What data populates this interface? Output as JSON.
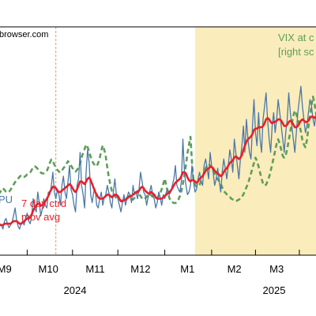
{
  "colors": {
    "epu": "#4a78a8",
    "epu_ma": "#e8202a",
    "vix": "#5e9e5a",
    "shade": "#fbecbc",
    "event_line": "#e0a060"
  },
  "source_text": "browser.com",
  "chart_data": {
    "type": "line",
    "x_tick_labels": [
      "M9",
      "M10",
      "M11",
      "M12",
      "M1",
      "M2",
      "M3"
    ],
    "year_labels": [
      "2024",
      "2025"
    ],
    "x_range_days": [
      0,
      210
    ],
    "event_day": 38,
    "shaded_from_day": 130,
    "annotations": [
      {
        "id": "vix",
        "lines": [
          "VIX at c",
          "[right sc"
        ]
      },
      {
        "id": "epu",
        "lines": [
          "PU"
        ]
      },
      {
        "id": "ma",
        "lines": [
          "7 day ctrd",
          "mov avg"
        ]
      }
    ],
    "series": [
      {
        "id": "epu",
        "style": "solid-thin",
        "values": [
          14,
          16,
          15,
          12,
          18,
          20,
          16,
          13,
          15,
          17,
          22,
          28,
          19,
          14,
          12,
          16,
          18,
          15,
          20,
          24,
          18,
          16,
          22,
          35,
          28,
          25,
          40,
          32,
          22,
          27,
          35,
          30,
          28,
          40,
          38,
          45,
          55,
          40,
          35,
          42,
          38,
          30,
          45,
          52,
          40,
          35,
          48,
          60,
          42,
          38,
          30,
          25,
          45,
          50,
          70,
          45,
          38,
          28,
          55,
          72,
          62,
          38,
          32,
          40,
          42,
          30,
          28,
          35,
          40,
          30,
          36,
          38,
          45,
          40,
          32,
          28,
          40,
          50,
          38,
          35,
          30,
          25,
          32,
          38,
          30,
          35,
          40,
          38,
          32,
          45,
          38,
          40,
          35,
          42,
          55,
          48,
          40,
          38,
          30,
          36,
          40,
          45,
          38,
          35,
          28,
          32,
          40,
          36,
          30,
          38,
          35,
          40,
          42,
          38,
          40,
          45,
          50,
          60,
          45,
          42,
          40,
          48,
          80,
          55,
          45,
          38,
          40,
          45,
          60,
          48,
          40,
          42,
          50,
          55,
          48,
          45,
          60,
          65,
          58,
          50,
          70,
          60,
          55,
          45,
          50,
          58,
          48,
          40,
          55,
          65,
          58,
          50,
          60,
          72,
          65,
          55,
          80,
          70,
          60,
          50,
          65,
          75,
          90,
          70,
          95,
          80,
          70,
          65,
          90,
          110,
          85,
          75,
          100,
          80,
          70,
          95,
          105,
          115,
          95,
          80,
          70,
          90,
          100,
          85,
          95,
          110,
          100,
          90,
          80,
          70,
          85,
          95,
          115,
          100,
          90,
          80,
          70,
          85,
          100,
          110,
          120,
          105,
          95,
          85,
          90,
          100,
          110,
          105,
          95,
          90,
          100
        ],
        "ylim": [
          0,
          165
        ]
      },
      {
        "id": "epu_ma",
        "style": "solid-thick",
        "values": [
          15,
          15,
          15,
          15,
          16,
          16,
          16,
          16,
          16,
          17,
          18,
          18,
          18,
          17,
          16,
          16,
          17,
          18,
          19,
          20,
          20,
          21,
          23,
          26,
          28,
          30,
          31,
          31,
          30,
          30,
          31,
          33,
          35,
          37,
          40,
          42,
          44,
          44,
          43,
          41,
          40,
          40,
          41,
          42,
          43,
          44,
          45,
          46,
          45,
          43,
          41,
          40,
          42,
          45,
          48,
          48,
          47,
          46,
          48,
          50,
          51,
          49,
          46,
          43,
          40,
          38,
          36,
          35,
          35,
          35,
          36,
          37,
          38,
          38,
          37,
          36,
          37,
          38,
          38,
          37,
          35,
          33,
          33,
          34,
          34,
          35,
          36,
          37,
          37,
          38,
          39,
          40,
          40,
          41,
          43,
          44,
          43,
          41,
          40,
          39,
          39,
          40,
          39,
          38,
          36,
          35,
          35,
          35,
          35,
          36,
          37,
          38,
          39,
          40,
          41,
          43,
          45,
          47,
          48,
          49,
          50,
          52,
          55,
          55,
          54,
          51,
          49,
          48,
          49,
          49,
          48,
          47,
          48,
          50,
          51,
          52,
          54,
          56,
          57,
          58,
          59,
          59,
          58,
          56,
          55,
          54,
          53,
          52,
          53,
          55,
          57,
          58,
          60,
          62,
          63,
          64,
          66,
          67,
          66,
          65,
          66,
          68,
          72,
          75,
          78,
          80,
          81,
          82,
          84,
          87,
          88,
          88,
          89,
          89,
          89,
          90,
          92,
          95,
          96,
          95,
          93,
          92,
          93,
          93,
          94,
          95,
          95,
          94,
          92,
          90,
          90,
          91,
          93,
          94,
          93,
          91,
          89,
          89,
          90,
          92,
          94,
          95,
          94,
          93,
          93,
          94,
          96,
          97,
          97,
          96,
          97
        ],
        "ylim": [
          0,
          165
        ]
      },
      {
        "id": "vix",
        "style": "dashed-thick",
        "values": [
          15.8,
          16.0,
          16.3,
          16.5,
          16.3,
          16.1,
          16.0,
          16.1,
          16.3,
          16.6,
          16.9,
          17.2,
          17.4,
          17.6,
          17.8,
          18.0,
          17.9,
          17.8,
          17.9,
          18.1,
          18.2,
          18.3,
          18.6,
          18.9,
          19.0,
          18.9,
          18.7,
          18.5,
          18.3,
          18.2,
          18.2,
          18.3,
          18.5,
          18.9,
          19.4,
          19.8,
          19.6,
          19.2,
          18.8,
          18.6,
          18.4,
          18.3,
          18.5,
          18.8,
          19.0,
          19.3,
          19.6,
          19.3,
          19.1,
          18.8,
          18.6,
          18.4,
          18.6,
          18.9,
          19.3,
          20.0,
          20.6,
          21.0,
          21.5,
          21.2,
          20.7,
          20.1,
          19.6,
          19.3,
          19.1,
          19.0,
          19.4,
          20.0,
          20.8,
          21.4,
          20.9,
          20.1,
          18.9,
          17.8,
          16.9,
          16.2,
          15.8,
          15.6,
          15.4,
          15.3,
          15.2,
          15.1,
          15.0,
          15.1,
          15.2,
          15.4,
          15.6,
          15.5,
          15.3,
          15.2,
          15.4,
          15.8,
          16.2,
          15.9,
          15.6,
          15.3,
          15.2,
          15.3,
          15.5,
          15.8,
          15.9,
          15.7,
          15.5,
          15.4,
          15.3,
          15.4,
          15.6,
          15.9,
          16.4,
          17.0,
          17.6,
          16.8,
          16.0,
          15.4,
          15.0,
          14.9,
          14.8,
          14.8,
          14.9,
          15.2,
          15.6,
          16.2,
          17.0,
          18.0,
          19.2,
          20.5,
          21.5,
          22.4,
          19.5,
          17.4,
          16.9,
          16.7,
          16.7,
          16.9,
          17.3,
          17.8,
          18.3,
          18.8,
          19.1,
          19.3,
          19.1,
          18.9,
          18.6,
          18.2,
          17.8,
          17.5,
          17.3,
          17.0,
          16.6,
          16.2,
          16.0,
          15.8,
          15.6,
          15.5,
          15.3,
          15.2,
          15.1,
          15.0,
          15.1,
          15.2,
          15.3,
          15.5,
          15.8,
          16.2,
          16.6,
          17.0,
          17.6,
          18.2,
          18.8,
          19.4,
          20.0,
          19.6,
          19.0,
          18.3,
          17.6,
          17.0,
          16.8,
          16.9,
          17.3,
          17.8,
          18.5,
          19.2,
          20.0,
          20.8,
          21.6,
          22.1,
          21.6,
          20.9,
          20.2,
          20.0,
          20.3,
          21.0,
          22.0,
          23.0,
          24.0,
          24.8,
          25.4,
          25.0,
          24.4,
          23.8,
          23.0,
          22.0,
          21.5,
          21.2,
          22.0,
          23.5,
          24.8,
          26.0,
          27.0,
          26.2,
          25.2,
          24.0,
          23.0,
          22.4,
          22.0
        ],
        "ylim": [
          10,
          35
        ]
      }
    ]
  }
}
